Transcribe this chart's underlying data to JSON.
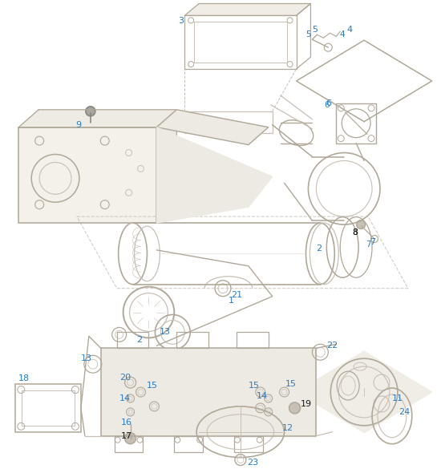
{
  "bg_color": "#ffffff",
  "lc": "#b0a898",
  "lc2": "#c8bfb5",
  "blue": "#2b7bbf",
  "black": "#1a1a1a",
  "figw": 5.5,
  "figh": 5.9,
  "dpi": 100
}
